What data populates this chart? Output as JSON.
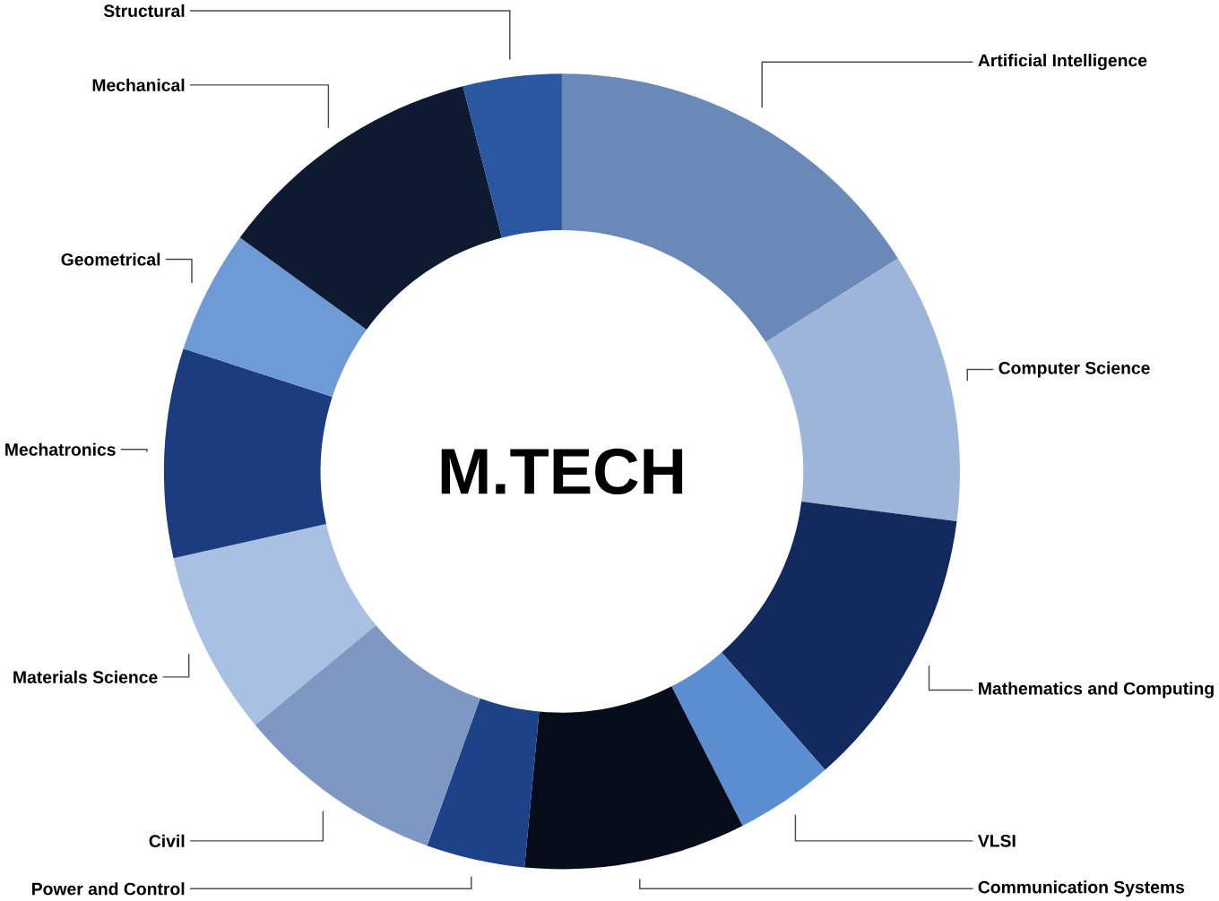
{
  "chart_data": {
    "type": "donut",
    "title": "M.TECH",
    "categories": [
      "Artificial Intelligence",
      "Computer Science",
      "Mathematics and Computing",
      "VLSI",
      "Communication Systems",
      "Power and Control",
      "Civil",
      "Materials Science",
      "Mechatronics",
      "Geometrical",
      "Mechanical",
      "Structural"
    ],
    "values": [
      16,
      11,
      11.5,
      4,
      9,
      4,
      8.5,
      7.5,
      8.5,
      5,
      11,
      4
    ],
    "colors": [
      "#6a88b8",
      "#9db5d9",
      "#132a5e",
      "#5b8ed0",
      "#060c1a",
      "#1e4288",
      "#7f97c3",
      "#a8c0e2",
      "#1c3c80",
      "#6e9ad6",
      "#0d1a30",
      "#2a58a0"
    ]
  }
}
